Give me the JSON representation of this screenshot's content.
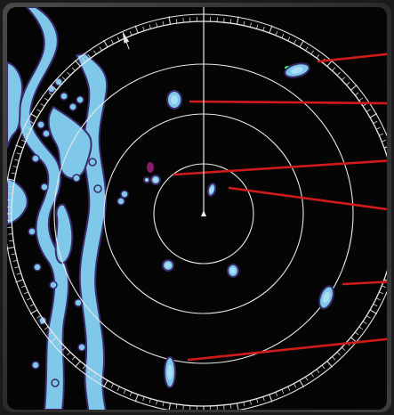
{
  "radar": {
    "range_ring_count": 4,
    "bearing_marker_deg": 0,
    "colors": {
      "background": "#050505",
      "bezel": "#3a3a3a",
      "range_ring": "#e8e8e8",
      "echo_fill": "#7fc8ea",
      "echo_edge": "#3a2a6a",
      "echo_core": "#a8dff4",
      "callout_line": "#d11b1b",
      "tick": "#d8d8d8"
    },
    "echoes": [
      {
        "name": "target-echo-1",
        "highlight": "green"
      },
      {
        "name": "target-echo-2",
        "highlight": "none"
      },
      {
        "name": "target-echo-3",
        "highlight": "none"
      },
      {
        "name": "target-echo-4",
        "highlight": "none"
      },
      {
        "name": "target-echo-5",
        "highlight": "none"
      },
      {
        "name": "target-echo-6",
        "highlight": "none"
      },
      {
        "name": "target-echo-7",
        "highlight": "none"
      },
      {
        "name": "target-echo-8",
        "highlight": "none"
      },
      {
        "name": "target-echo-9",
        "highlight": "magenta"
      }
    ],
    "callouts": 6,
    "icons": [
      "heading-marker-icon",
      "north-marker-icon",
      "own-ship-icon"
    ]
  }
}
